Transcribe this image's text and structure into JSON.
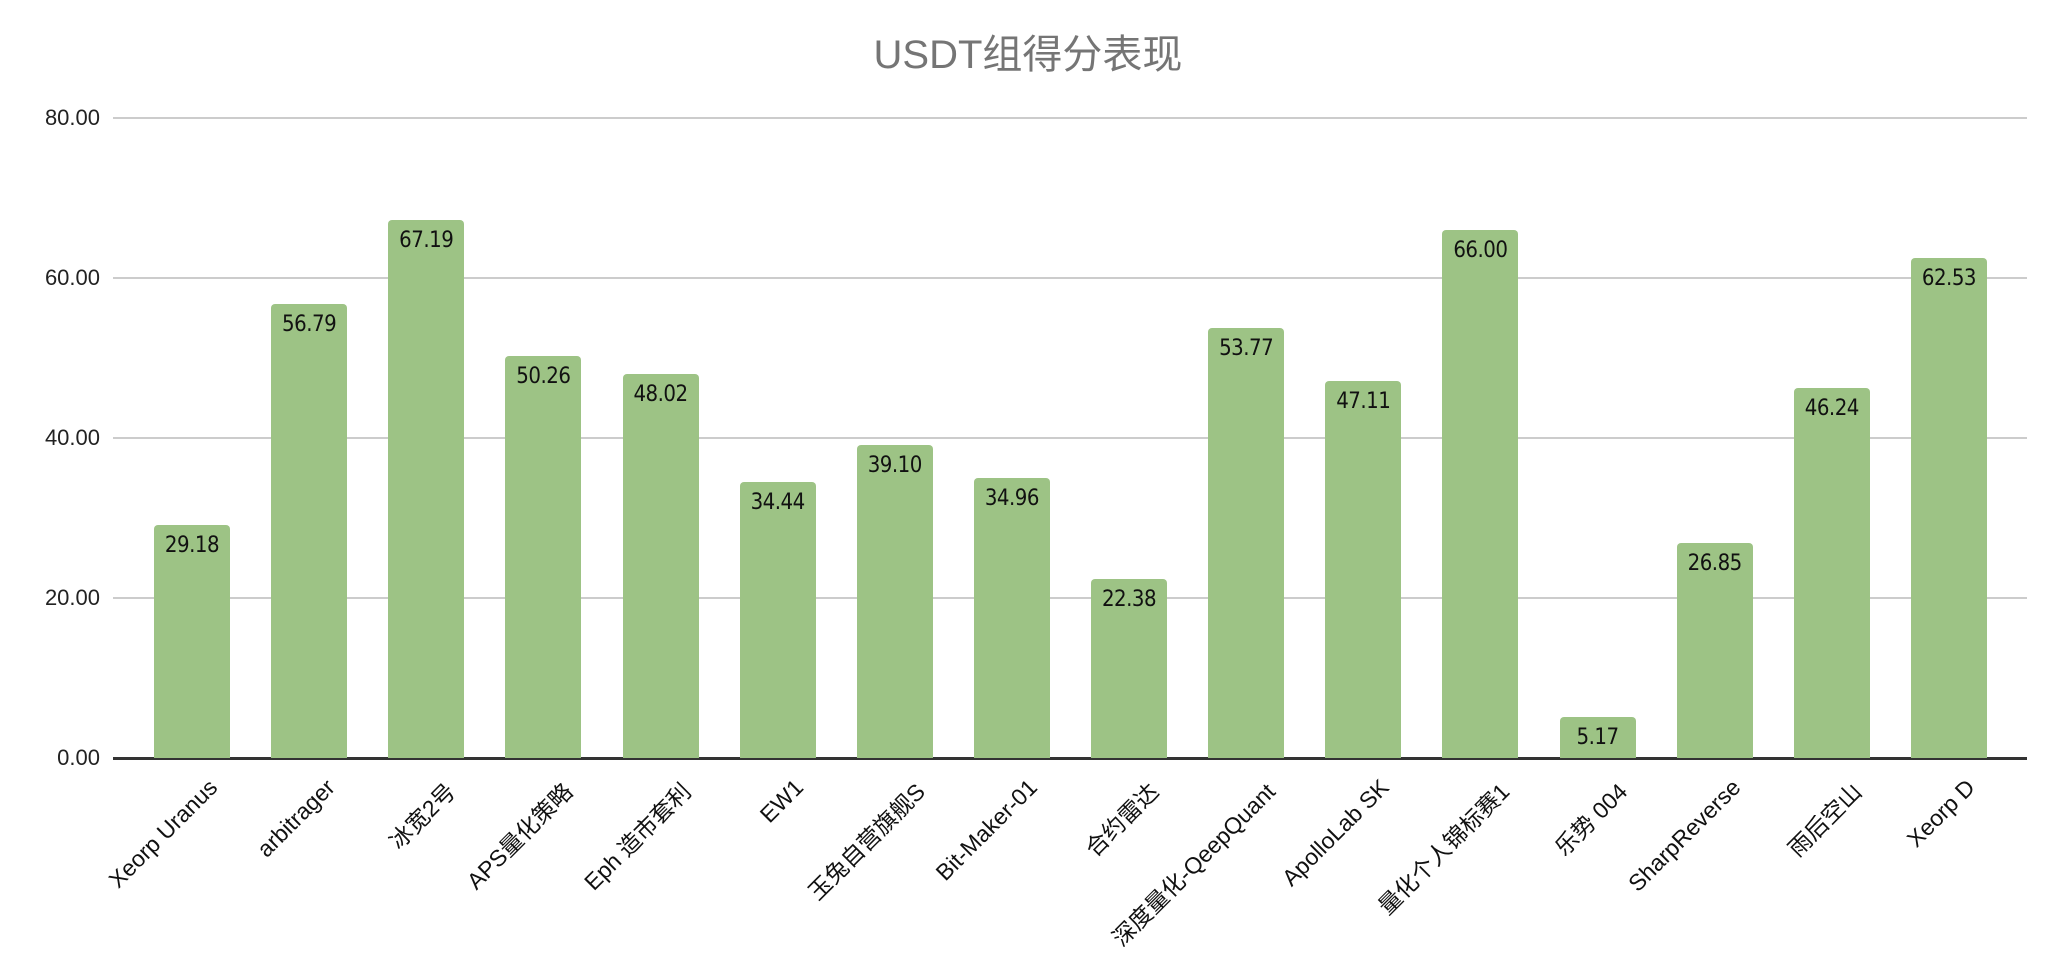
{
  "chart_data": {
    "type": "bar",
    "title": "USDT组得分表现",
    "xlabel": "",
    "ylabel": "",
    "ylim": [
      0,
      80
    ],
    "yticks": [
      "0.00",
      "20.00",
      "40.00",
      "60.00",
      "80.00"
    ],
    "grid": true,
    "legend": null,
    "bar_color": "#9dc385",
    "categories": [
      "Xeorp Uranus",
      "arbitrager",
      "冰宽2号",
      "APS量化策略",
      "Eph 造市套利",
      "EW1",
      "玉兔自营旗舰S",
      "Bit-Maker-01",
      "合约雷达",
      "深度量化-QeepQuant",
      "ApolloLab SK",
      "量化个人锦标赛1",
      "乐势 004",
      "SharpReverse",
      "雨后空山",
      "Xeorp D"
    ],
    "values": [
      29.18,
      56.79,
      67.19,
      50.26,
      48.02,
      34.44,
      39.1,
      34.96,
      22.38,
      53.77,
      47.11,
      66.0,
      5.17,
      26.85,
      46.24,
      62.53
    ],
    "value_labels": [
      "29.18",
      "56.79",
      "67.19",
      "50.26",
      "48.02",
      "34.44",
      "39.10",
      "34.96",
      "22.38",
      "53.77",
      "47.11",
      "66.00",
      "5.17",
      "26.85",
      "46.24",
      "62.53"
    ]
  }
}
